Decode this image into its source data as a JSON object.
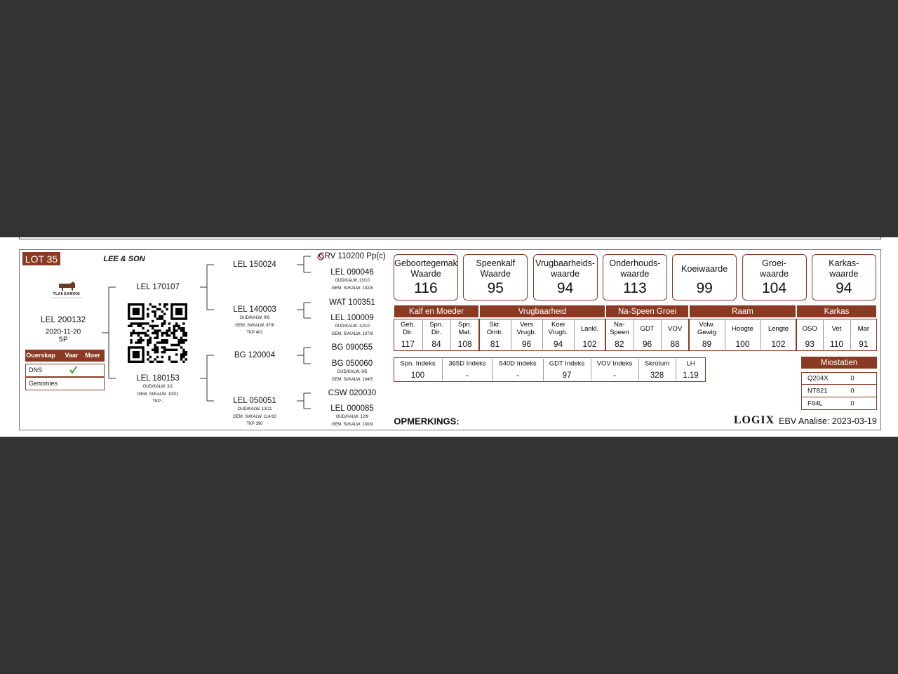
{
  "lot": "LOT 35",
  "breeder": "LEE & SON",
  "logo": "TLAKGAMING",
  "animal": {
    "id": "LEL 200132",
    "date": "2020-11-20",
    "code": "SP"
  },
  "ownership": {
    "headers": [
      "Ouerskap",
      "Vaar",
      "Moer"
    ],
    "rows": [
      "DNS",
      "Genomies"
    ]
  },
  "pedigree": {
    "parents": [
      {
        "id": "LEL 170107"
      },
      {
        "id": "LEL 180153",
        "details": [
          "OUD/KALW. 3/1",
          "GEM. SI/KALW. 100/1",
          "TKP -"
        ]
      }
    ],
    "grandparents": [
      {
        "id": "LEL 150024"
      },
      {
        "id": "LEL 140003",
        "details": [
          "OUD/KALW. 9/6",
          "GEM. SI/KALW. 97/6",
          "TKP 401"
        ]
      },
      {
        "id": "BG 120004"
      },
      {
        "id": "LEL 050051",
        "details": [
          "OUD/KALW. 13/11",
          "GEM. SI/KALW. 114/10",
          "TKP 390"
        ]
      }
    ],
    "great_grandparents": [
      {
        "id": "CRV 110200 Pp(c)"
      },
      {
        "id": "LEL 090046",
        "details": [
          "OUD/KALW. 13/10",
          "GEM. SI/KALW. 102/8"
        ]
      },
      {
        "id": "WAT 100351"
      },
      {
        "id": "LEL 100009",
        "details": [
          "OUD/KALW. 12/10",
          "GEM. SI/KALW. 107/8"
        ]
      },
      {
        "id": "BG 090055"
      },
      {
        "id": "BG 050060",
        "details": [
          "OUD/KALW. 9/5",
          "GEM. SI/KALW. 104/5"
        ]
      },
      {
        "id": "CSW 020030"
      },
      {
        "id": "LEL 000085",
        "details": [
          "OUD/KALW. 12/9",
          "GEM. SI/KALW. 100/9"
        ]
      }
    ]
  },
  "value_boxes": [
    {
      "label": [
        "Geboortegemak",
        "Waarde"
      ],
      "value": 116
    },
    {
      "label": [
        "Speenkalf",
        "Waarde"
      ],
      "value": 95
    },
    {
      "label": [
        "Vrugbaarheids-",
        "waarde"
      ],
      "value": 94
    },
    {
      "label": [
        "Onderhouds-",
        "waarde"
      ],
      "value": 113
    },
    {
      "label": [
        "Koeiwaarde"
      ],
      "value": 99
    },
    {
      "label": [
        "Groei-",
        "waarde"
      ],
      "value": 104
    },
    {
      "label": [
        "Karkas-",
        "waarde"
      ],
      "value": 94
    }
  ],
  "ebv_groups": [
    {
      "name": "Kalf en Moeder",
      "traits": [
        {
          "label": "Geb. Dir.",
          "value": 117
        },
        {
          "label": "Spn. Dir.",
          "value": 84
        },
        {
          "label": "Spn. Mat.",
          "value": 108
        }
      ]
    },
    {
      "name": "Vrugbaarheid",
      "traits": [
        {
          "label": "Skr. Omtr.",
          "value": 81
        },
        {
          "label": "Vers Vrugb.",
          "value": 96
        },
        {
          "label": "Koei Vrugb.",
          "value": 94
        },
        {
          "label": "Lankl.",
          "value": 102
        }
      ]
    },
    {
      "name": "Na-Speen Groei",
      "traits": [
        {
          "label": "Na-Speen",
          "value": 82
        },
        {
          "label": "GDT",
          "value": 96
        },
        {
          "label": "VOV",
          "value": 88
        }
      ]
    },
    {
      "name": "Raam",
      "traits": [
        {
          "label": "Volw. Gewig",
          "value": 89
        },
        {
          "label": "Hoogte",
          "value": 100
        },
        {
          "label": "Lengte",
          "value": 102
        }
      ]
    },
    {
      "name": "Karkas",
      "traits": [
        {
          "label": "OSO",
          "value": 93
        },
        {
          "label": "Vet",
          "value": 110
        },
        {
          "label": "Mar",
          "value": 91
        }
      ]
    }
  ],
  "indexes": [
    {
      "label": "Spn. Indeks",
      "value": 100
    },
    {
      "label": "365D Indeks",
      "value": "-"
    },
    {
      "label": "540D Indeks",
      "value": "-"
    },
    {
      "label": "GDT Indeks",
      "value": 97
    },
    {
      "label": "VOV Indeks",
      "value": "-"
    },
    {
      "label": "Skrotum",
      "value": 328
    },
    {
      "label": "LH",
      "value": 1.19
    }
  ],
  "miostatien": {
    "title": "Miostatien",
    "rows": [
      [
        "Q204X",
        0
      ],
      [
        "NT821",
        0
      ],
      [
        "F94L",
        0
      ]
    ]
  },
  "remarks": "OPMERKINGS:",
  "footer": {
    "logo": "LOGIX",
    "analysis": "EBV Analise: 2023-03-19"
  }
}
